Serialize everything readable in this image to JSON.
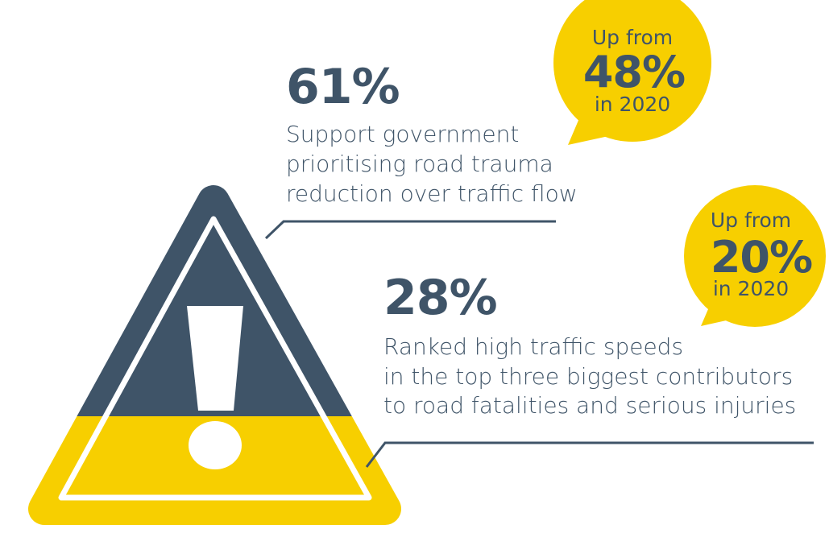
{
  "stats": [
    {
      "value": "61%",
      "description": [
        "Support government",
        "prioritising road trauma",
        "reduction over traffic flow"
      ],
      "bubble": {
        "top": "Up from",
        "value": "48%",
        "bottom": "in 2020"
      }
    },
    {
      "value": "28%",
      "description": [
        "Ranked high traffic speeds",
        "in the top three biggest contributors",
        "to road fatalities and serious injuries"
      ],
      "bubble": {
        "top": "Up from",
        "value": "20%",
        "bottom": "in 2020"
      }
    }
  ]
}
